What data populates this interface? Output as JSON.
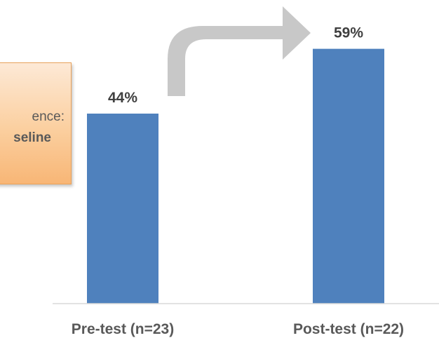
{
  "callout": {
    "line1": "ence:",
    "line2": "seline"
  },
  "chart_data": {
    "type": "bar",
    "categories": [
      "Pre-test (n=23)",
      "Post-test (n=22)"
    ],
    "values": [
      44,
      59
    ],
    "data_labels": [
      "44%",
      "59%"
    ],
    "title": "",
    "xlabel": "",
    "ylabel": "",
    "ylim": [
      0,
      70
    ],
    "grid": false,
    "legend": "none"
  },
  "colors": {
    "bar": "#4f81bd",
    "arrow": "#c8c8c8",
    "axis": "#d9d9d9",
    "callout_border": "#e8a15a"
  }
}
